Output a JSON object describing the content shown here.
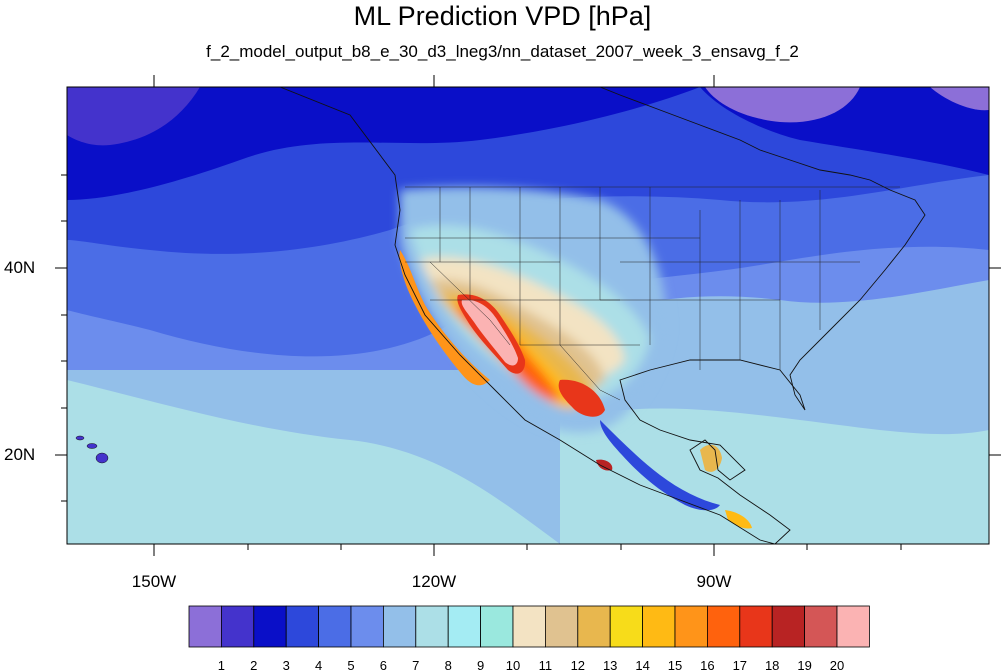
{
  "title": "ML Prediction VPD [hPa]",
  "subtitle": "f_2_model_output_b8_e_30_d3_lneg3/nn_dataset_2007_week_3_ensavg_f_2",
  "map": {
    "projection": "cylindrical equidistant",
    "lon_range": [
      -160,
      -62
    ],
    "lat_range": [
      11,
      59
    ],
    "lat_tick_labels": [
      "40N",
      "20N"
    ],
    "lon_tick_labels": [
      "150W",
      "120W",
      "90W"
    ],
    "features": [
      "coastlines",
      "US state boundaries",
      "country borders"
    ]
  },
  "legend": {
    "levels": [
      "1",
      "2",
      "3",
      "4",
      "5",
      "6",
      "7",
      "8",
      "9",
      "10",
      "11",
      "12",
      "13",
      "14",
      "15",
      "16",
      "17",
      "18",
      "19",
      "20"
    ],
    "colors": [
      "#8c6fd8",
      "#4433cc",
      "#0a0fc8",
      "#2d48db",
      "#4b6de6",
      "#6c8ded",
      "#93bfe9",
      "#acdfe7",
      "#a4ecf3",
      "#9ae8de",
      "#f3e3c3",
      "#e0c290",
      "#e8b74e",
      "#f7dc1a",
      "#ffba14",
      "#ff9419",
      "#ff620d",
      "#e8361a",
      "#b82323",
      "#d45656",
      "#fbb3b3"
    ]
  }
}
